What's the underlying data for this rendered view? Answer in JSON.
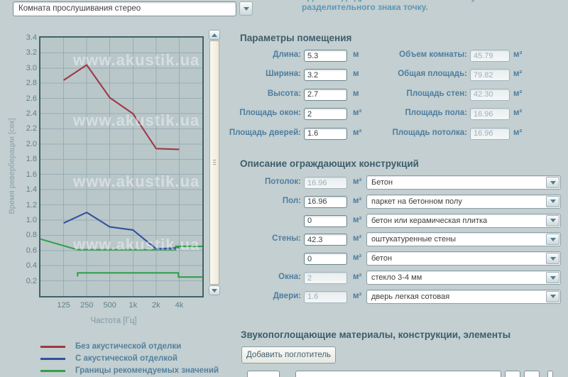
{
  "top": {
    "room_select_value": "Комната прослушивания стерео",
    "note_line1_clipped": "Для ввода дробных значений используйте в качестве",
    "note_line2": "разделительного знака точку."
  },
  "chart_data": {
    "type": "line",
    "title": "",
    "xlabel": "Частота [Гц]",
    "ylabel": "Время реверберации [сек]",
    "x_tick_labels": [
      "125",
      "250",
      "500",
      "1k",
      "2k",
      "4k"
    ],
    "x_tick_freqs": [
      125,
      250,
      500,
      1000,
      2000,
      4000
    ],
    "freq_range": [
      62.5,
      8000
    ],
    "ylim": [
      0,
      3.4
    ],
    "y_tick_min": 0.2,
    "y_tick_step": 0.2,
    "grid": true,
    "legend_position": "bottom-left",
    "watermark": "www.akustik.ua",
    "colors": {
      "background": "#b9c7c9",
      "gridline": "#98adb6",
      "border": "#44616c"
    },
    "series": [
      {
        "name": "Без акустической отделки",
        "color": "#9e3944",
        "lines": [
          [
            [
              125,
              2.84
            ],
            [
              250,
              3.04
            ],
            [
              500,
              2.61
            ],
            [
              1000,
              2.4
            ],
            [
              2000,
              1.94
            ],
            [
              4000,
              1.93
            ]
          ]
        ]
      },
      {
        "name": "С акустической отделкой",
        "color": "#3351a0",
        "lines": [
          [
            [
              125,
              0.96
            ],
            [
              250,
              1.1
            ],
            [
              500,
              0.91
            ],
            [
              1000,
              0.87
            ],
            [
              2000,
              0.62
            ],
            [
              4000,
              0.635
            ]
          ]
        ]
      },
      {
        "name": "Границы рекомендуемых значений",
        "color": "#33a04a",
        "lines": [
          [
            [
              62.5,
              0.75
            ],
            [
              190,
              0.61
            ],
            [
              3600,
              0.61
            ],
            [
              3600,
              0.655
            ],
            [
              8000,
              0.655
            ]
          ],
          [
            [
              190,
              0.26
            ],
            [
              190,
              0.305
            ],
            [
              3900,
              0.305
            ],
            [
              3900,
              0.25
            ],
            [
              8000,
              0.25
            ]
          ]
        ]
      }
    ]
  },
  "room_params": {
    "title": "Параметры помещения",
    "inputs": [
      {
        "label": "Длина:",
        "value": "5.3",
        "unit": "м",
        "disabled": false
      },
      {
        "label": "Ширина:",
        "value": "3.2",
        "unit": "м",
        "disabled": false
      },
      {
        "label": "Высота:",
        "value": "2.7",
        "unit": "м",
        "disabled": false
      },
      {
        "label": "Площадь окон:",
        "value": "2",
        "unit": "м²",
        "disabled": false
      },
      {
        "label": "Площадь дверей:",
        "value": "1.6",
        "unit": "м²",
        "disabled": false
      }
    ],
    "computed": [
      {
        "label": "Объем комнаты:",
        "value": "45.79",
        "unit": "м³",
        "disabled": true
      },
      {
        "label": "Общая площадь:",
        "value": "79.82",
        "unit": "м²",
        "disabled": true
      },
      {
        "label": "Площадь стен:",
        "value": "42.30",
        "unit": "м²",
        "disabled": true
      },
      {
        "label": "Площадь пола:",
        "value": "16.96",
        "unit": "м²",
        "disabled": true
      },
      {
        "label": "Площадь потолка:",
        "value": "16.96",
        "unit": "м²",
        "disabled": true
      }
    ]
  },
  "constructions": {
    "title": "Описание ограждающих конструкций",
    "rows": [
      {
        "label": "Потолок:",
        "area": "16.96",
        "area_disabled": true,
        "unit": "м²",
        "material": "Бетон"
      },
      {
        "label": "Пол:",
        "area": "16.96",
        "area_disabled": false,
        "unit": "м²",
        "material": "паркет на бетонном полу"
      },
      {
        "label": "",
        "area": "0",
        "area_disabled": false,
        "unit": "м²",
        "material": "бетон или керамическая плитка"
      },
      {
        "label": "Стены:",
        "area": "42.3",
        "area_disabled": false,
        "unit": "м²",
        "material": "оштукатуренные стены"
      },
      {
        "label": "",
        "area": "0",
        "area_disabled": false,
        "unit": "м²",
        "material": "бетон"
      },
      {
        "label": "Окна:",
        "area": "2",
        "area_disabled": true,
        "unit": "м²",
        "material": "стекло 3-4 мм"
      },
      {
        "label": "Двери:",
        "area": "1.6",
        "area_disabled": true,
        "unit": "м²",
        "material": "дверь легкая сотовая"
      }
    ]
  },
  "absorbers": {
    "title": "Звукопоглощающие материалы, конструкции, элементы",
    "add_button_label": "Добавить поглотитель"
  }
}
